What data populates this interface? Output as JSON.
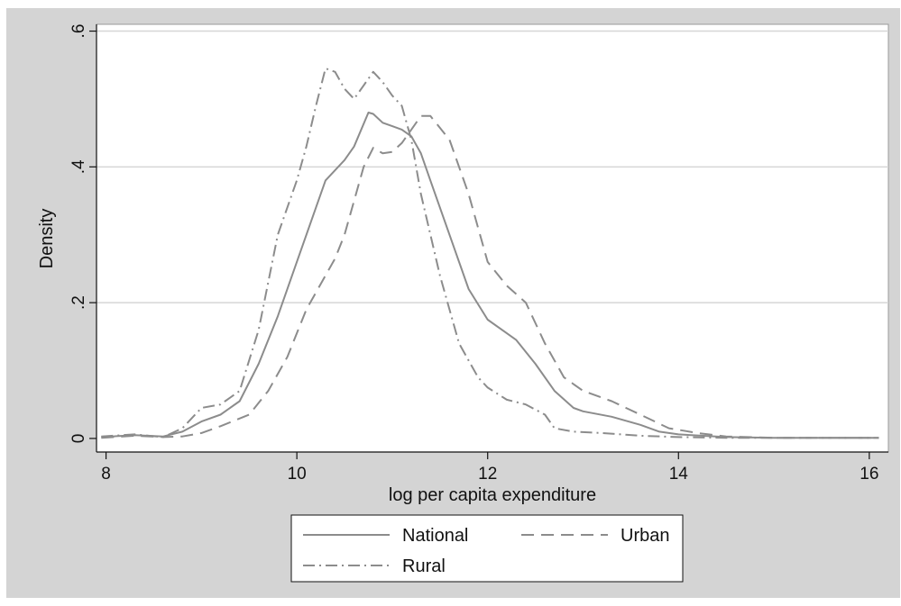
{
  "chart_data": {
    "type": "line",
    "xlabel": "log per capita expenditure",
    "ylabel": "Density",
    "xlim": [
      7.9,
      16.2
    ],
    "ylim": [
      -0.02,
      0.61
    ],
    "xticks": [
      8,
      10,
      12,
      14,
      16
    ],
    "yticks": [
      0,
      0.2,
      0.4,
      0.6
    ],
    "xtick_labels": [
      "8",
      "10",
      "12",
      "14",
      "16"
    ],
    "ytick_labels": [
      "0",
      ".2",
      ".4",
      ".6"
    ],
    "grid": "horizontal",
    "legend": "bottom",
    "colors": {
      "outer_background": "#d4d4d4",
      "plot_background": "#ffffff",
      "series_line": "#8c8c8c",
      "grid": "#d6d6d6"
    },
    "series": [
      {
        "name": "National",
        "dash": "solid",
        "points": [
          [
            7.95,
            0.002
          ],
          [
            8.3,
            0.005
          ],
          [
            8.6,
            0.003
          ],
          [
            8.8,
            0.01
          ],
          [
            9.0,
            0.025
          ],
          [
            9.2,
            0.035
          ],
          [
            9.4,
            0.055
          ],
          [
            9.6,
            0.11
          ],
          [
            9.8,
            0.18
          ],
          [
            10.0,
            0.26
          ],
          [
            10.2,
            0.34
          ],
          [
            10.3,
            0.38
          ],
          [
            10.5,
            0.41
          ],
          [
            10.6,
            0.43
          ],
          [
            10.75,
            0.48
          ],
          [
            10.8,
            0.478
          ],
          [
            10.9,
            0.465
          ],
          [
            11.0,
            0.46
          ],
          [
            11.1,
            0.455
          ],
          [
            11.2,
            0.445
          ],
          [
            11.3,
            0.42
          ],
          [
            11.4,
            0.38
          ],
          [
            11.6,
            0.3
          ],
          [
            11.8,
            0.22
          ],
          [
            12.0,
            0.175
          ],
          [
            12.2,
            0.155
          ],
          [
            12.3,
            0.145
          ],
          [
            12.5,
            0.11
          ],
          [
            12.7,
            0.07
          ],
          [
            12.9,
            0.045
          ],
          [
            13.0,
            0.04
          ],
          [
            13.3,
            0.032
          ],
          [
            13.6,
            0.02
          ],
          [
            13.8,
            0.01
          ],
          [
            14.0,
            0.006
          ],
          [
            14.5,
            0.002
          ],
          [
            15.0,
            0.001
          ],
          [
            16.1,
            0.001
          ]
        ]
      },
      {
        "name": "Urban",
        "dash": "dash",
        "points": [
          [
            7.95,
            0.001
          ],
          [
            8.3,
            0.004
          ],
          [
            8.6,
            0.002
          ],
          [
            8.8,
            0.003
          ],
          [
            9.0,
            0.008
          ],
          [
            9.2,
            0.018
          ],
          [
            9.5,
            0.035
          ],
          [
            9.7,
            0.07
          ],
          [
            9.9,
            0.12
          ],
          [
            10.1,
            0.19
          ],
          [
            10.3,
            0.24
          ],
          [
            10.4,
            0.265
          ],
          [
            10.5,
            0.3
          ],
          [
            10.6,
            0.35
          ],
          [
            10.7,
            0.4
          ],
          [
            10.8,
            0.428
          ],
          [
            10.9,
            0.42
          ],
          [
            11.0,
            0.422
          ],
          [
            11.1,
            0.435
          ],
          [
            11.2,
            0.455
          ],
          [
            11.3,
            0.475
          ],
          [
            11.4,
            0.475
          ],
          [
            11.6,
            0.44
          ],
          [
            11.8,
            0.36
          ],
          [
            12.0,
            0.26
          ],
          [
            12.2,
            0.225
          ],
          [
            12.4,
            0.2
          ],
          [
            12.6,
            0.14
          ],
          [
            12.8,
            0.09
          ],
          [
            13.0,
            0.07
          ],
          [
            13.3,
            0.055
          ],
          [
            13.6,
            0.035
          ],
          [
            13.9,
            0.015
          ],
          [
            14.2,
            0.008
          ],
          [
            14.5,
            0.003
          ],
          [
            15.0,
            0.001
          ],
          [
            16.1,
            0.001
          ]
        ]
      },
      {
        "name": "Rural",
        "dash": "dashdot",
        "points": [
          [
            7.95,
            0.003
          ],
          [
            8.3,
            0.006
          ],
          [
            8.6,
            0.002
          ],
          [
            8.8,
            0.015
          ],
          [
            9.0,
            0.045
          ],
          [
            9.2,
            0.05
          ],
          [
            9.4,
            0.07
          ],
          [
            9.6,
            0.16
          ],
          [
            9.8,
            0.3
          ],
          [
            10.0,
            0.38
          ],
          [
            10.1,
            0.43
          ],
          [
            10.2,
            0.49
          ],
          [
            10.3,
            0.545
          ],
          [
            10.4,
            0.54
          ],
          [
            10.5,
            0.515
          ],
          [
            10.6,
            0.5
          ],
          [
            10.7,
            0.52
          ],
          [
            10.8,
            0.54
          ],
          [
            10.9,
            0.525
          ],
          [
            11.0,
            0.505
          ],
          [
            11.1,
            0.49
          ],
          [
            11.2,
            0.44
          ],
          [
            11.3,
            0.36
          ],
          [
            11.5,
            0.24
          ],
          [
            11.7,
            0.14
          ],
          [
            11.9,
            0.09
          ],
          [
            12.0,
            0.075
          ],
          [
            12.2,
            0.057
          ],
          [
            12.4,
            0.05
          ],
          [
            12.6,
            0.035
          ],
          [
            12.7,
            0.015
          ],
          [
            12.9,
            0.01
          ],
          [
            13.2,
            0.008
          ],
          [
            13.6,
            0.004
          ],
          [
            14.0,
            0.002
          ],
          [
            14.5,
            0.001
          ],
          [
            16.1,
            0.001
          ]
        ]
      }
    ]
  }
}
